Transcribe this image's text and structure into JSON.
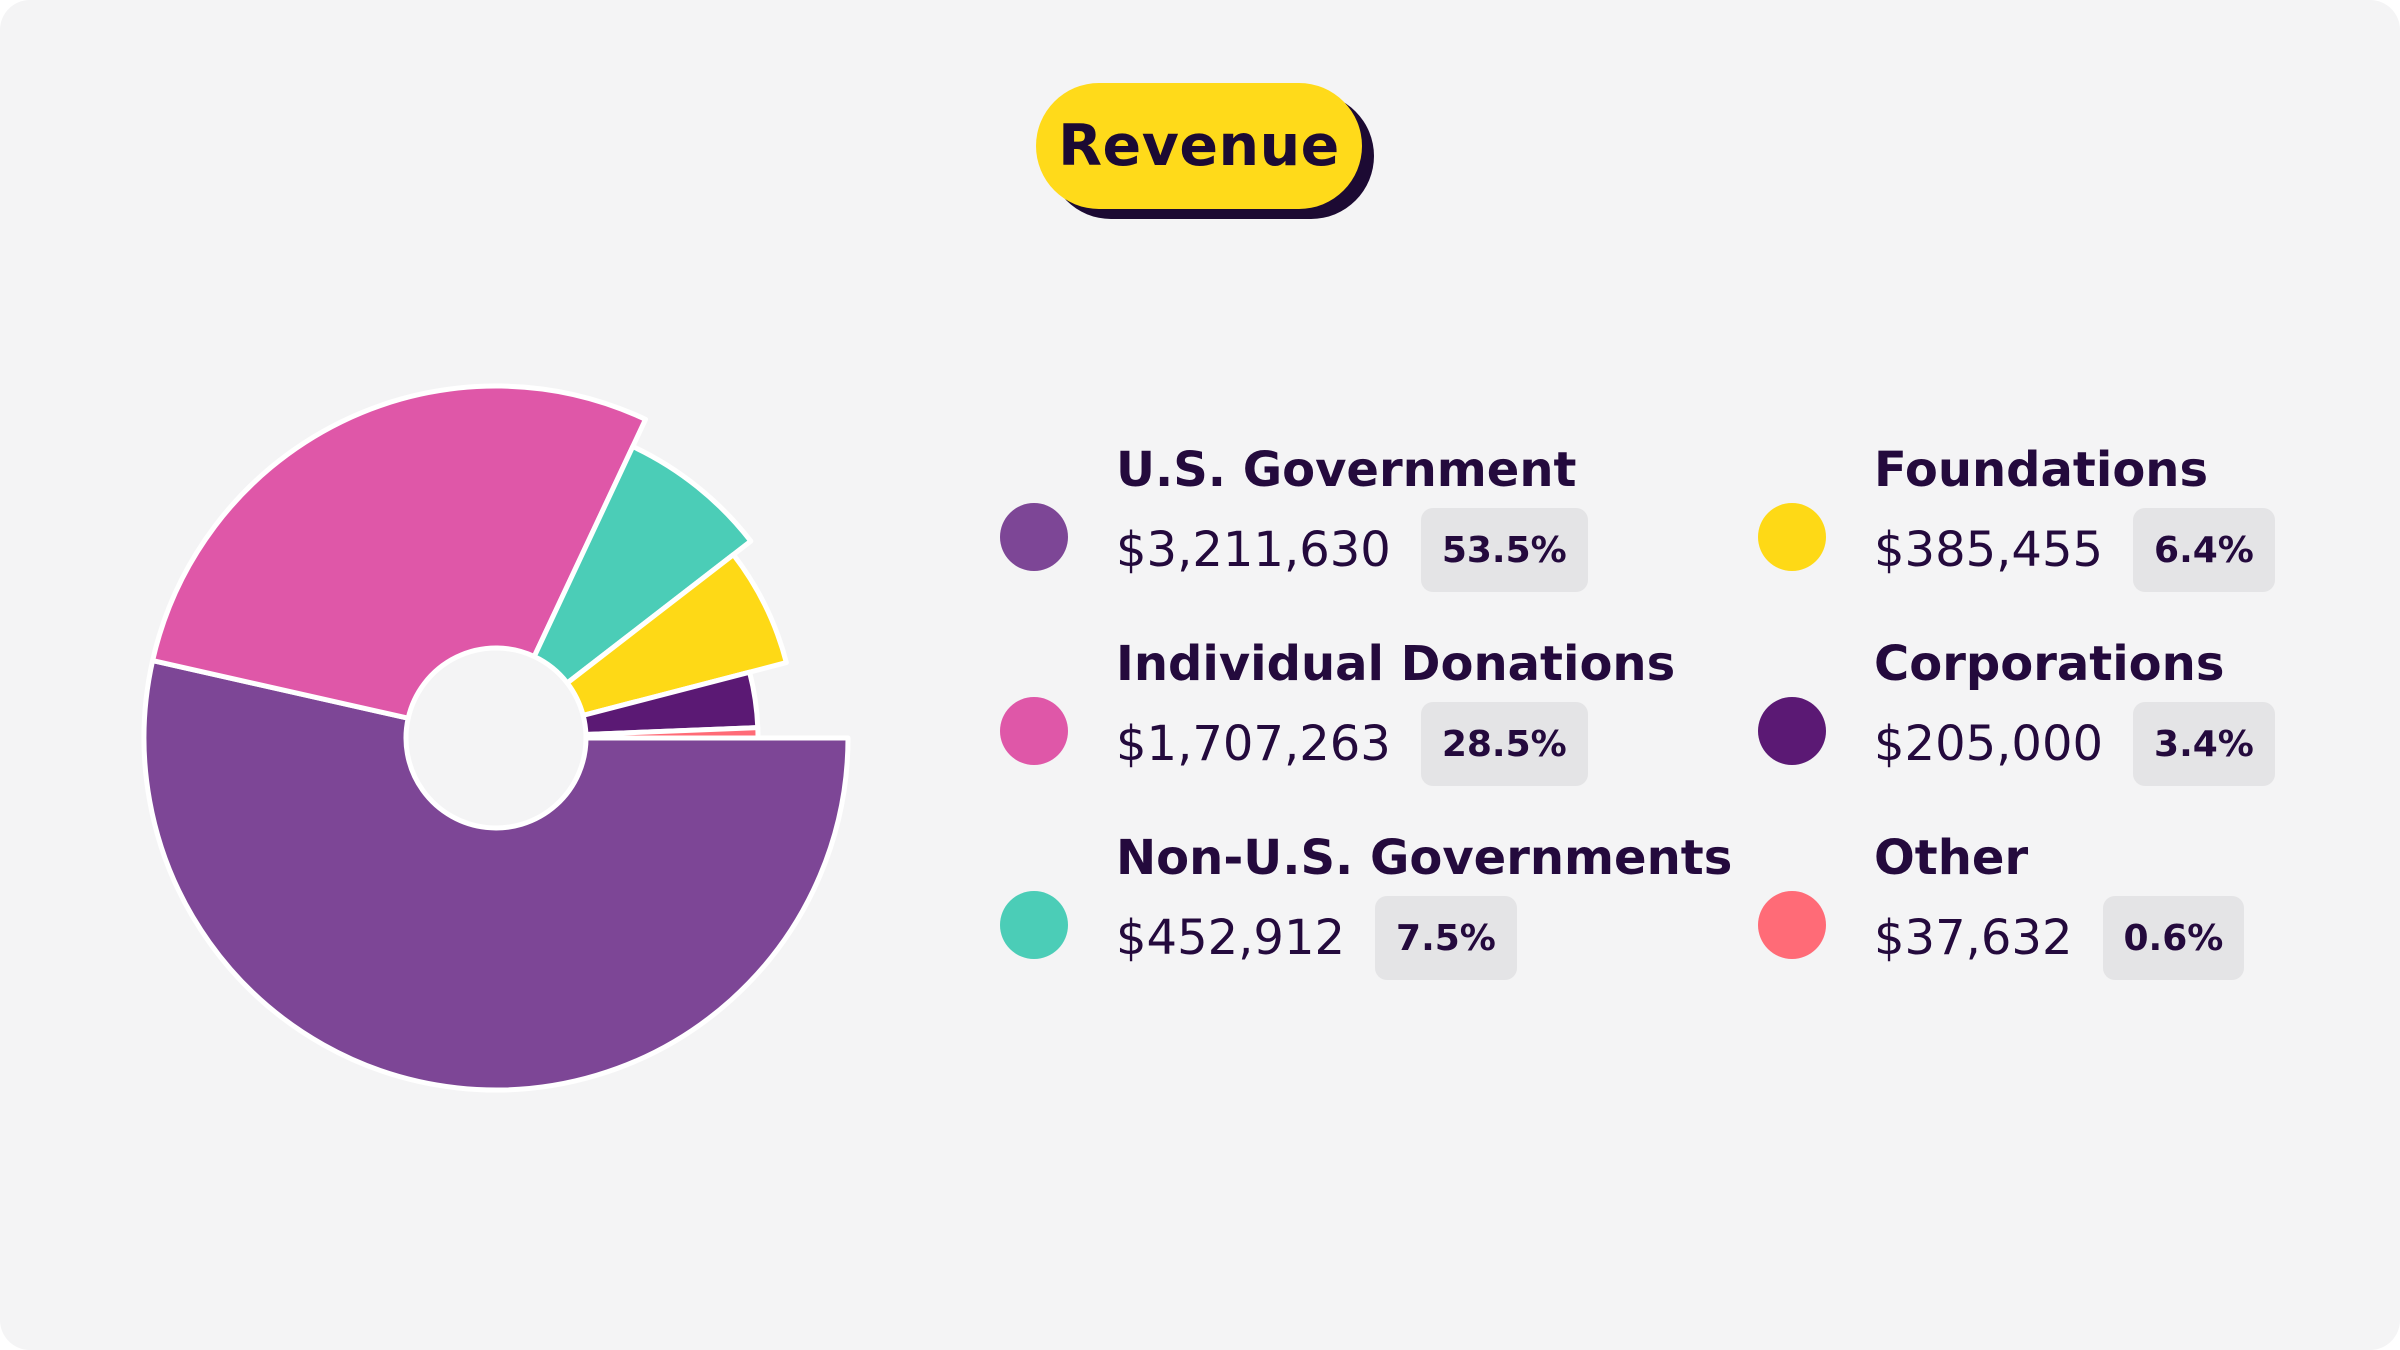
{
  "title": "Revenue",
  "chart_data": {
    "type": "pie",
    "title": "Revenue",
    "series": [
      {
        "name": "U.S. Government",
        "amount": "$3,211,630",
        "percent_label": "53.5%",
        "value": 3211630,
        "percent": 53.5,
        "color": "#7d4696"
      },
      {
        "name": "Individual Donations",
        "amount": "$1,707,263",
        "percent_label": "28.5%",
        "value": 1707263,
        "percent": 28.5,
        "color": "#df57a8"
      },
      {
        "name": "Non-U.S. Governments",
        "amount": "$452,912",
        "percent_label": "7.5%",
        "value": 452912,
        "percent": 7.5,
        "color": "#4bcdb7"
      },
      {
        "name": "Foundations",
        "amount": "$385,455",
        "percent_label": "6.4%",
        "value": 385455,
        "percent": 6.4,
        "color": "#fed916"
      },
      {
        "name": "Corporations",
        "amount": "$205,000",
        "percent_label": "3.4%",
        "value": 205000,
        "percent": 3.4,
        "color": "#5b1974"
      },
      {
        "name": "Other",
        "amount": "$37,632",
        "percent_label": "0.6%",
        "value": 37632,
        "percent": 0.6,
        "color": "#ff6b77"
      }
    ]
  }
}
